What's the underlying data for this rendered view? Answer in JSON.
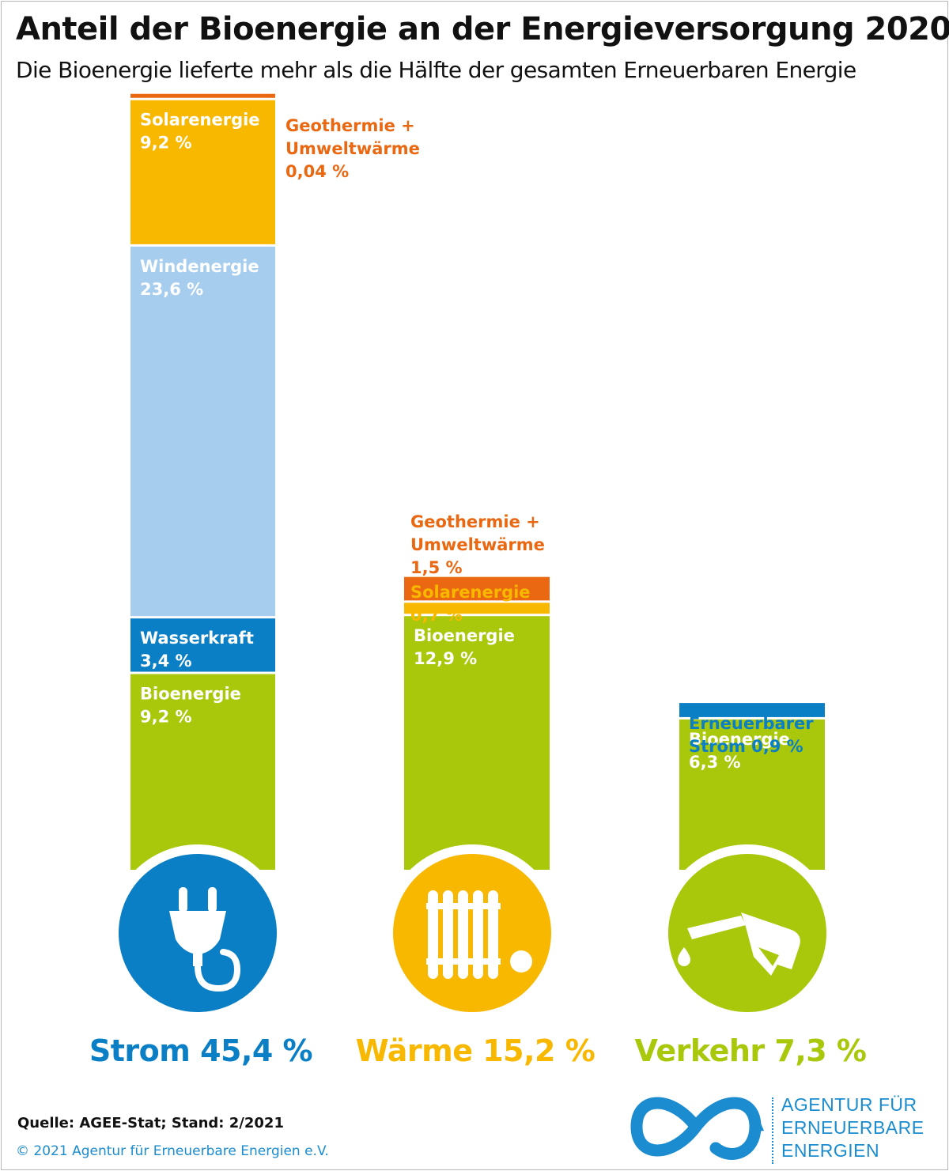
{
  "title": "Anteil der Bioenergie an der Energieversorgung 2020",
  "subtitle": "Die Bioenergie lieferte mehr als die Hälfte der gesamten Erneuerbaren Energie",
  "source": "Quelle: AGEE-Stat; Stand: 2/2021",
  "copyright": "© 2021 Agentur für Erneuerbare Energien e.V.",
  "logo": {
    "line1": "AGENTUR FÜR",
    "line2": "ERNEUERBARE",
    "line3": "ENERGIEN"
  },
  "colors": {
    "bio": "#a9c80c",
    "wasser": "#0a7fc5",
    "wind": "#a7cdee",
    "solar": "#f9b800",
    "geo": "#e96811",
    "strom_blue": "#0a7fc5"
  },
  "chart_data": {
    "type": "bar",
    "stacked": true,
    "unit": "%",
    "categories": [
      "Strom",
      "Wärme",
      "Verkehr"
    ],
    "category_labels": [
      "Strom 45,4 %",
      "Wärme 15,2 %",
      "Verkehr 7,3 %"
    ],
    "totals": [
      45.4,
      15.2,
      7.3
    ],
    "category_icons": [
      "plug-icon",
      "radiator-icon",
      "fuel-nozzle-icon"
    ],
    "series": [
      {
        "name": "Bioenergie",
        "values": [
          9.2,
          12.9,
          6.3
        ],
        "labels": [
          "Bioenergie\n9,2 %",
          "Bioenergie\n12,9 %",
          "Bioenergie\n6,3 %"
        ]
      },
      {
        "name": "Wasserkraft",
        "values": [
          3.4,
          0,
          0
        ],
        "labels": [
          "Wasserkraft\n3,4 %",
          "",
          ""
        ]
      },
      {
        "name": "Erneuerbarer Strom",
        "values": [
          0,
          0,
          0.9
        ],
        "labels": [
          "",
          "",
          "Erneuerbarer\nStrom 0,9 %"
        ]
      },
      {
        "name": "Windenergie",
        "values": [
          23.6,
          0,
          0
        ],
        "labels": [
          "Windenergie\n23,6 %",
          "",
          ""
        ]
      },
      {
        "name": "Solarenergie",
        "values": [
          9.2,
          0.7,
          0
        ],
        "labels": [
          "Solarenergie\n9,2 %",
          "Solarenergie\n0,7 %",
          ""
        ]
      },
      {
        "name": "Geothermie + Umweltwärme",
        "values": [
          0.04,
          1.5,
          0
        ],
        "labels": [
          "Geothermie +\nUmweltwärme\n0,04 %",
          "Geothermie +\nUmweltwärme\n1,5 %",
          ""
        ]
      }
    ]
  }
}
